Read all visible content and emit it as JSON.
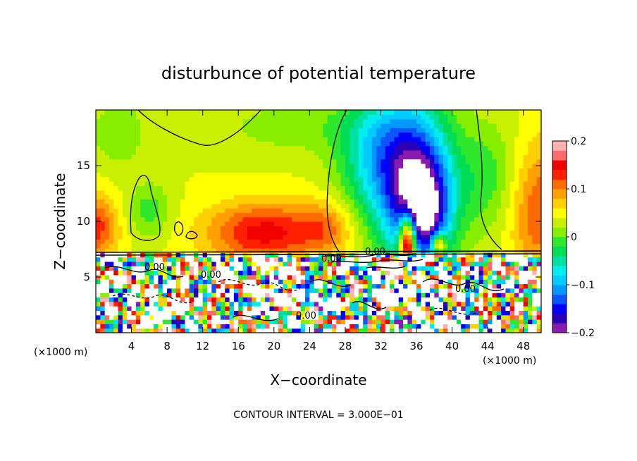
{
  "chart_data": {
    "type": "heatmap",
    "title": "disturbunce of potential temperature",
    "xlabel": "X−coordinate",
    "ylabel": "Z−coordinate",
    "x_unit_label": "(×1000 m)",
    "xlim": [
      0,
      50
    ],
    "ylim": [
      0,
      20
    ],
    "x_ticks": [
      4,
      8,
      12,
      16,
      20,
      24,
      28,
      32,
      36,
      40,
      44,
      48
    ],
    "y_ticks": [
      5,
      10,
      15
    ],
    "footer": "CONTOUR INTERVAL = 3.000E−01",
    "colorbar": {
      "min": -0.2,
      "max": 0.2,
      "ticks": [
        {
          "value": 0.2,
          "label": "0.2"
        },
        {
          "value": 0.1,
          "label": "0.1"
        },
        {
          "value": 0,
          "label": "0"
        },
        {
          "value": -0.1,
          "label": "−0.1"
        },
        {
          "value": -0.2,
          "label": "−0.2"
        }
      ],
      "colors": [
        "#8a1ab0",
        "#2a00b8",
        "#0000ff",
        "#0a55ff",
        "#0099ff",
        "#00ccff",
        "#00eeee",
        "#00e0a0",
        "#00dd55",
        "#2ee82e",
        "#88ee00",
        "#c8f000",
        "#ffff00",
        "#ffd000",
        "#ffa000",
        "#ff6a00",
        "#ff2000",
        "#f20000",
        "#ff6b6b",
        "#ffb0b0"
      ]
    },
    "contour_labels": [
      "0.00",
      "0.00",
      "0.00",
      "0.00",
      "0.00",
      "0.00"
    ]
  }
}
